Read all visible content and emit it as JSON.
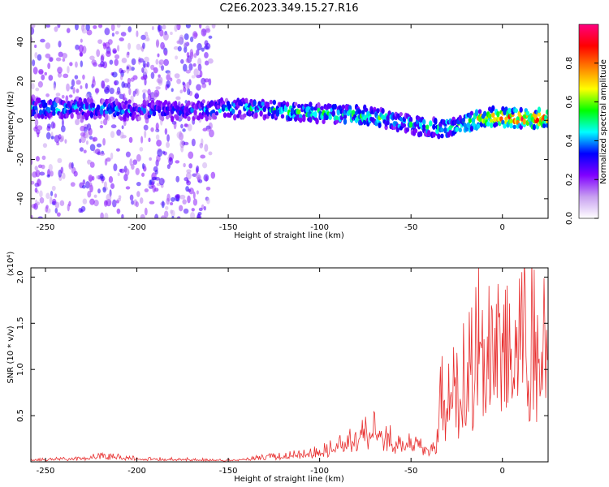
{
  "title": "C2E6.2023.349.15.27.R16",
  "chart_data": [
    {
      "type": "heatmap",
      "xlabel": "Height of straight line (km)",
      "ylabel": "Frequency (Hz)",
      "xlim": [
        -258,
        25
      ],
      "ylim": [
        -50,
        49
      ],
      "x_ticks": [
        -250,
        -200,
        -150,
        -100,
        -50,
        0
      ],
      "y_ticks": [
        -40,
        -20,
        0,
        20,
        40
      ],
      "colorbar": {
        "label": "Normalized spectral amplitude",
        "range": [
          0,
          1
        ],
        "ticks": [
          0.0,
          0.2,
          0.4,
          0.6,
          0.8
        ],
        "colormap": [
          "#ffffff",
          "#c8a0f0",
          "#8000ff",
          "#0000ff",
          "#00ffff",
          "#00ff00",
          "#ffff00",
          "#ff8000",
          "#ff0000",
          "#ff0080"
        ]
      },
      "ridge": {
        "x": [
          -258,
          -230,
          -200,
          -170,
          -150,
          -130,
          -110,
          -90,
          -70,
          -55,
          -45,
          -35,
          -25,
          -15,
          -5,
          5,
          25
        ],
        "frequency": [
          6,
          6,
          5,
          5,
          6,
          6,
          4,
          3,
          2,
          -1,
          -3,
          -4,
          -3,
          0,
          2,
          1,
          1
        ],
        "amplitude": [
          0.5,
          0.45,
          0.4,
          0.35,
          0.45,
          0.5,
          0.55,
          0.55,
          0.55,
          0.5,
          0.5,
          0.55,
          0.6,
          0.7,
          0.85,
          0.9,
          0.9
        ]
      },
      "noise_band": {
        "x_range": [
          -258,
          -158
        ],
        "amplitude": 0.25
      }
    },
    {
      "type": "line",
      "xlabel": "Height of straight line (km)",
      "ylabel": "SNR (10 * v/v)",
      "multiplier": "(x10⁴)",
      "xlim": [
        -258,
        25
      ],
      "ylim": [
        0,
        2.1
      ],
      "x_ticks": [
        -250,
        -200,
        -150,
        -100,
        -50,
        0
      ],
      "y_ticks": [
        0.5,
        1.0,
        1.5,
        2.0
      ],
      "y_tick_labels": [
        "0.5",
        "1.0",
        "1.5",
        "2.0"
      ],
      "series": [
        {
          "color": "#e83030",
          "x": [
            -258,
            -230,
            -220,
            -200,
            -170,
            -150,
            -140,
            -120,
            -100,
            -90,
            -80,
            -75,
            -70,
            -65,
            -60,
            -50,
            -40,
            -36,
            -34,
            -30,
            -25,
            -20,
            -15,
            -13,
            -10,
            -5,
            0,
            5,
            10,
            15,
            20,
            25
          ],
          "y": [
            0.03,
            0.04,
            0.08,
            0.04,
            0.03,
            0.02,
            0.04,
            0.08,
            0.12,
            0.22,
            0.3,
            0.45,
            0.4,
            0.38,
            0.25,
            0.22,
            0.2,
            0.18,
            0.75,
            0.9,
            1.0,
            1.05,
            1.1,
            2.1,
            1.2,
            1.3,
            1.25,
            1.3,
            1.4,
            1.45,
            1.55,
            1.7
          ]
        }
      ]
    }
  ]
}
